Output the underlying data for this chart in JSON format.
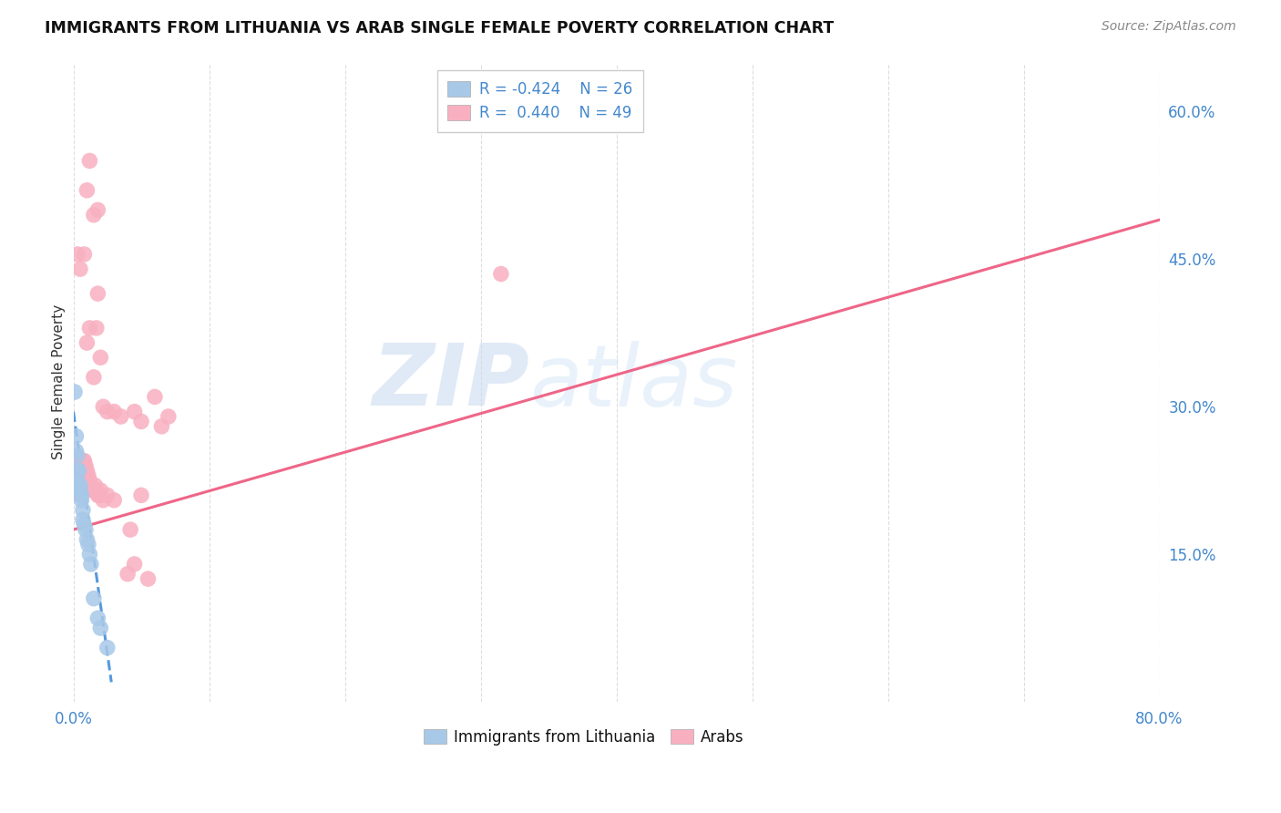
{
  "title": "IMMIGRANTS FROM LITHUANIA VS ARAB SINGLE FEMALE POVERTY CORRELATION CHART",
  "source": "Source: ZipAtlas.com",
  "ylabel_left": "Single Female Poverty",
  "x_min": 0.0,
  "x_max": 0.8,
  "y_min": 0.0,
  "y_max": 0.65,
  "right_yticks": [
    0.15,
    0.3,
    0.45,
    0.6
  ],
  "right_yticklabels": [
    "15.0%",
    "30.0%",
    "45.0%",
    "60.0%"
  ],
  "bottom_xticks": [
    0.0,
    0.1,
    0.2,
    0.3,
    0.4,
    0.5,
    0.6,
    0.7,
    0.8
  ],
  "legend_r1": "R = -0.424",
  "legend_n1": "N = 26",
  "legend_r2": "R =  0.440",
  "legend_n2": "N = 49",
  "watermark_zip": "ZIP",
  "watermark_atlas": "atlas",
  "lithuania_color": "#a8c8e8",
  "arab_color": "#f8b0c0",
  "trend_lithuania_color": "#5599dd",
  "trend_arab_color": "#ee6688",
  "lithuania_points": [
    [
      0.001,
      0.315
    ],
    [
      0.002,
      0.27
    ],
    [
      0.002,
      0.255
    ],
    [
      0.003,
      0.25
    ],
    [
      0.003,
      0.235
    ],
    [
      0.003,
      0.225
    ],
    [
      0.004,
      0.235
    ],
    [
      0.004,
      0.22
    ],
    [
      0.004,
      0.215
    ],
    [
      0.005,
      0.22
    ],
    [
      0.005,
      0.215
    ],
    [
      0.005,
      0.21
    ],
    [
      0.006,
      0.21
    ],
    [
      0.006,
      0.205
    ],
    [
      0.007,
      0.195
    ],
    [
      0.007,
      0.185
    ],
    [
      0.008,
      0.18
    ],
    [
      0.009,
      0.175
    ],
    [
      0.01,
      0.165
    ],
    [
      0.011,
      0.16
    ],
    [
      0.012,
      0.15
    ],
    [
      0.013,
      0.14
    ],
    [
      0.015,
      0.105
    ],
    [
      0.018,
      0.085
    ],
    [
      0.02,
      0.075
    ],
    [
      0.025,
      0.055
    ]
  ],
  "arab_points": [
    [
      0.005,
      0.44
    ],
    [
      0.008,
      0.455
    ],
    [
      0.01,
      0.52
    ],
    [
      0.012,
      0.55
    ],
    [
      0.015,
      0.495
    ],
    [
      0.018,
      0.5
    ],
    [
      0.003,
      0.455
    ],
    [
      0.01,
      0.365
    ],
    [
      0.012,
      0.38
    ],
    [
      0.015,
      0.33
    ],
    [
      0.017,
      0.38
    ],
    [
      0.018,
      0.415
    ],
    [
      0.02,
      0.35
    ],
    [
      0.022,
      0.3
    ],
    [
      0.025,
      0.295
    ],
    [
      0.03,
      0.295
    ],
    [
      0.035,
      0.29
    ],
    [
      0.003,
      0.245
    ],
    [
      0.004,
      0.235
    ],
    [
      0.005,
      0.245
    ],
    [
      0.006,
      0.235
    ],
    [
      0.007,
      0.245
    ],
    [
      0.008,
      0.245
    ],
    [
      0.009,
      0.24
    ],
    [
      0.01,
      0.235
    ],
    [
      0.011,
      0.23
    ],
    [
      0.012,
      0.225
    ],
    [
      0.013,
      0.22
    ],
    [
      0.014,
      0.215
    ],
    [
      0.015,
      0.215
    ],
    [
      0.016,
      0.22
    ],
    [
      0.017,
      0.215
    ],
    [
      0.018,
      0.21
    ],
    [
      0.019,
      0.21
    ],
    [
      0.02,
      0.215
    ],
    [
      0.022,
      0.205
    ],
    [
      0.025,
      0.21
    ],
    [
      0.03,
      0.205
    ],
    [
      0.04,
      0.13
    ],
    [
      0.042,
      0.175
    ],
    [
      0.045,
      0.14
    ],
    [
      0.055,
      0.125
    ],
    [
      0.045,
      0.295
    ],
    [
      0.05,
      0.285
    ],
    [
      0.05,
      0.21
    ],
    [
      0.06,
      0.31
    ],
    [
      0.065,
      0.28
    ],
    [
      0.07,
      0.29
    ],
    [
      0.315,
      0.435
    ]
  ],
  "lith_trend_x": [
    0.0,
    0.028
  ],
  "lith_trend_y_start": 0.295,
  "lith_trend_y_end": 0.02,
  "arab_trend_x": [
    0.0,
    0.8
  ],
  "arab_trend_y_start": 0.175,
  "arab_trend_y_end": 0.49
}
